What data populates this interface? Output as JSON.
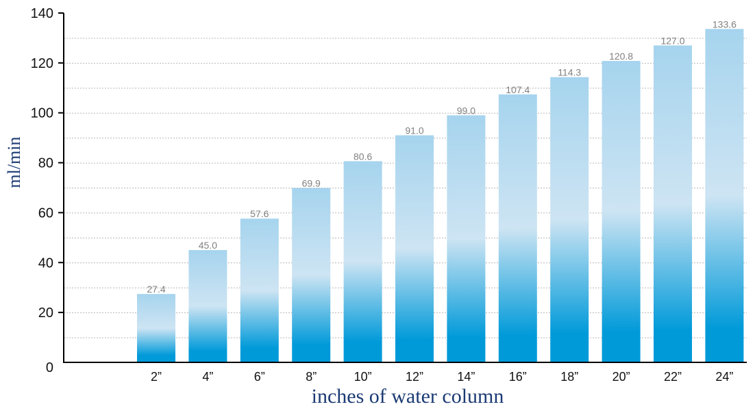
{
  "chart_data": {
    "type": "bar",
    "categories": [
      "2”",
      "4”",
      "6”",
      "8”",
      "10”",
      "12”",
      "14”",
      "16”",
      "18”",
      "20”",
      "22”",
      "24”"
    ],
    "values": [
      27.4,
      45.0,
      57.6,
      69.9,
      80.6,
      91.0,
      99.0,
      107.4,
      114.3,
      120.8,
      127.0,
      133.6
    ],
    "data_labels": [
      "27.4",
      "45.0",
      "57.6",
      "69.9",
      "80.6",
      "91.0",
      "99.0",
      "107.4",
      "114.3",
      "120.8",
      "127.0",
      "133.6"
    ],
    "xlabel": "inches of water column",
    "ylabel": "ml/min",
    "ylim": [
      0,
      140
    ],
    "yticks": [
      "0",
      "20",
      "40",
      "60",
      "80",
      "100",
      "120",
      "140"
    ],
    "grid": true,
    "colors": {
      "bar_top": "#a6d4ee",
      "bar_mid": "#cde4f3",
      "bar_bottom": "#009ad9",
      "axis_title": "#1b3a73",
      "data_label": "#808080"
    }
  }
}
